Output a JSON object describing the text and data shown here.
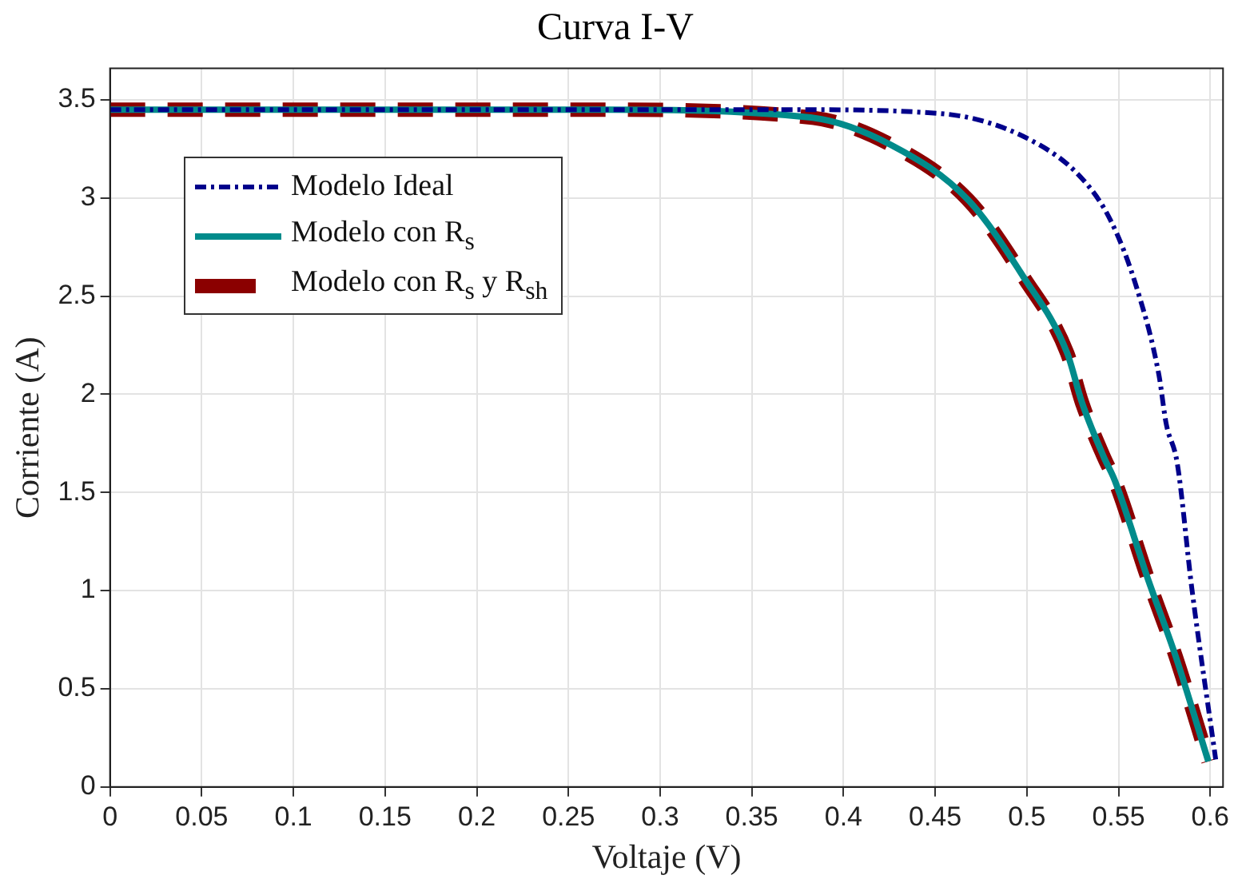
{
  "chart_data": {
    "type": "line",
    "title": "Curva I-V",
    "xlabel": "Voltaje (V)",
    "ylabel": "Corriente (A)",
    "xlim": [
      0,
      0.607
    ],
    "xticks": [
      0,
      0.05,
      0.1,
      0.15,
      0.2,
      0.25,
      0.3,
      0.35,
      0.4,
      0.45,
      0.5,
      0.55,
      0.6
    ],
    "ylim": [
      0,
      3.66
    ],
    "yticks": [
      0,
      0.5,
      1,
      1.5,
      2,
      2.5,
      3,
      3.5
    ],
    "grid": true,
    "legend": "top left",
    "marker": "none",
    "series": [
      {
        "name": "Modelo Ideal",
        "color": "#00008b",
        "line_style": "dashed",
        "x": [
          0,
          0.3,
          0.37,
          0.453,
          0.501,
          0.53,
          0.546,
          0.56,
          0.572,
          0.576,
          0.582,
          0.59,
          0.603
        ],
        "values": [
          3.45,
          3.45,
          3.45,
          3.43,
          3.3,
          3.1,
          2.88,
          2.54,
          2.1,
          1.85,
          1.65,
          1.01,
          0.14
        ]
      },
      {
        "name": "Modelo con R$_{s}$",
        "color": "#008b8b",
        "line_style": "solid",
        "x": [
          0,
          0.263,
          0.382,
          0.426,
          0.468,
          0.498,
          0.522,
          0.53,
          0.542,
          0.548,
          0.566,
          0.581,
          0.599
        ],
        "values": [
          3.45,
          3.45,
          3.41,
          3.27,
          2.99,
          2.6,
          2.21,
          1.96,
          1.68,
          1.56,
          1.06,
          0.67,
          0.13
        ]
      },
      {
        "name": "Modelo con R$_{s}$ y R$_{sh}$",
        "color": "#8b0000",
        "line_style": "dashed",
        "x": [
          0,
          0.263,
          0.382,
          0.426,
          0.468,
          0.498,
          0.522,
          0.53,
          0.542,
          0.548,
          0.566,
          0.581,
          0.599
        ],
        "values": [
          3.45,
          3.45,
          3.41,
          3.27,
          2.99,
          2.6,
          2.21,
          1.96,
          1.68,
          1.56,
          1.06,
          0.67,
          0.13
        ]
      }
    ]
  }
}
